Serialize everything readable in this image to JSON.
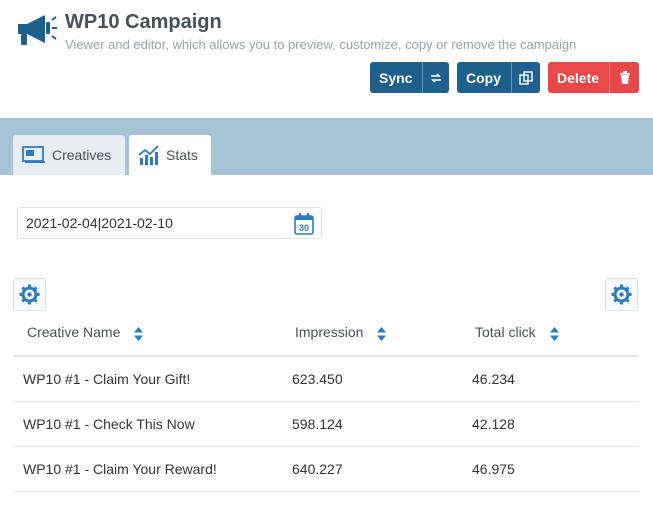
{
  "header": {
    "title": "WP10 Campaign",
    "subtitle": "Viewer and editor, which allows you to preview, customize, copy or remove the campaign",
    "icon": "megaphone-icon"
  },
  "actions": {
    "sync_label": "Sync",
    "copy_label": "Copy",
    "delete_label": "Delete"
  },
  "tabs": [
    {
      "label": "Creatives",
      "icon": "creatives-icon",
      "active": false
    },
    {
      "label": "Stats",
      "icon": "stats-chart-icon",
      "active": true
    }
  ],
  "date_range": {
    "value": "2021-02-04|2021-02-10"
  },
  "table": {
    "columns": [
      "Creative Name",
      "Impression",
      "Total click"
    ],
    "rows": [
      [
        "WP10 #1 - Claim Your Gift!",
        "623.450",
        "46.234"
      ],
      [
        "WP10 #1 - Check This Now",
        "598.124",
        "42.128"
      ],
      [
        "WP10 #1 - Claim Your Reward!",
        "640.227",
        "46.975"
      ]
    ]
  },
  "colors": {
    "primary": "#1f5f8b",
    "danger": "#e94848",
    "tabbar": "#a6c4d6",
    "icon_blue": "#2d7cc1"
  }
}
